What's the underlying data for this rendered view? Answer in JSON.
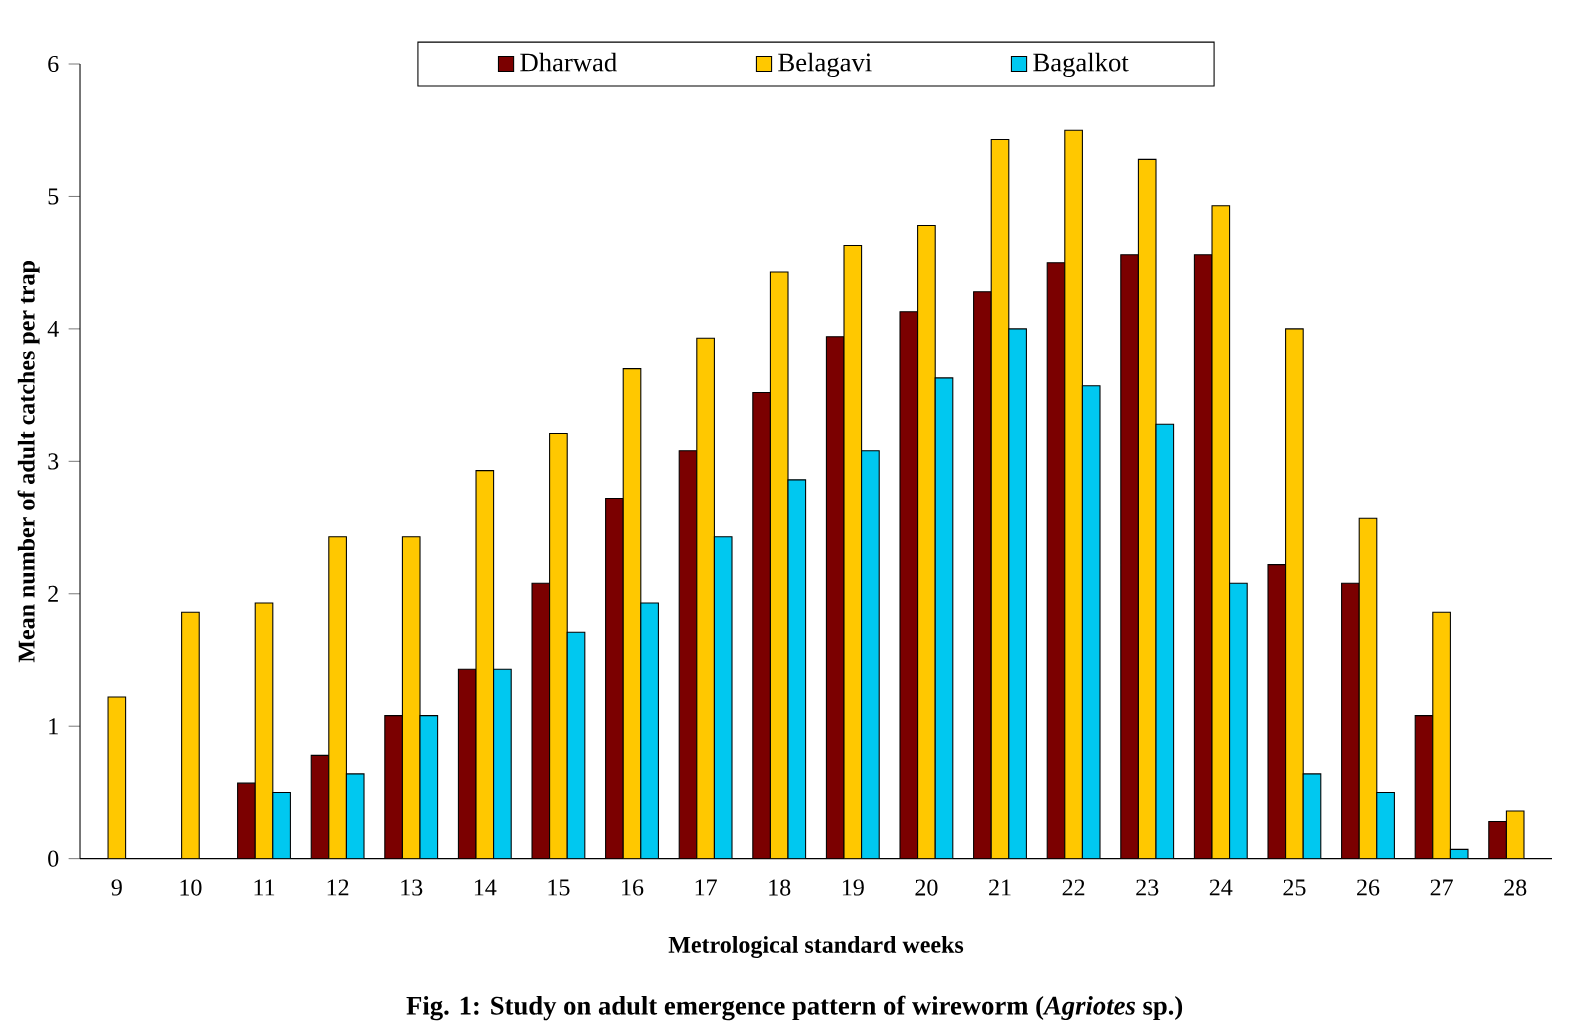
{
  "chart_data": {
    "type": "bar",
    "title": "Fig. 1: Study on adult emergence pattern of wireworm (*Agriotes* sp.)",
    "xlabel": "Metrological standard weeks",
    "ylabel": "Mean number of adult catches per trap",
    "categories": [
      "9",
      "10",
      "11",
      "12",
      "13",
      "14",
      "15",
      "16",
      "17",
      "18",
      "19",
      "20",
      "21",
      "22",
      "23",
      "24",
      "25",
      "26",
      "27",
      "28"
    ],
    "series": [
      {
        "name": "Dharwad",
        "color": "#7b0000",
        "values": [
          null,
          null,
          0.57,
          0.78,
          1.08,
          1.43,
          2.08,
          2.72,
          3.08,
          3.52,
          3.94,
          4.13,
          4.28,
          4.5,
          4.56,
          4.56,
          2.22,
          2.08,
          1.08,
          0.28
        ]
      },
      {
        "name": "Belagavi",
        "color": "#ffc800",
        "values": [
          1.22,
          1.86,
          1.93,
          2.43,
          2.43,
          2.93,
          3.21,
          3.7,
          3.93,
          4.43,
          4.63,
          4.78,
          5.43,
          5.5,
          5.28,
          4.93,
          4.0,
          2.57,
          1.86,
          0.36
        ]
      },
      {
        "name": "Bagalkot",
        "color": "#00c8f0",
        "values": [
          null,
          null,
          0.5,
          0.64,
          1.08,
          1.43,
          1.71,
          1.93,
          2.43,
          2.86,
          3.08,
          3.63,
          4.0,
          3.57,
          3.28,
          2.08,
          0.64,
          0.5,
          0.07,
          null
        ]
      }
    ],
    "ylim": [
      0,
      6
    ],
    "yticks": [
      0,
      1,
      2,
      3,
      4,
      5,
      6
    ],
    "grid": false,
    "legend": "top"
  }
}
